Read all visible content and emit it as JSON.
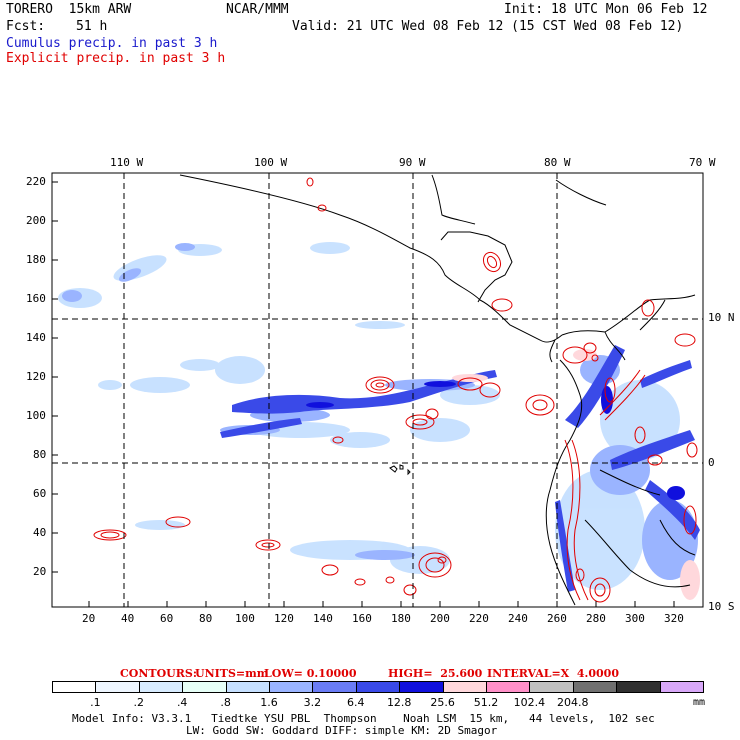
{
  "header": {
    "model": "TORERO  15km ARW",
    "org": "NCAR/MMM",
    "init": "Init: 18 UTC Mon 06 Feb 12",
    "fcst_label": "Fcst:",
    "fcst_value": "51 h",
    "valid": "Valid: 21 UTC Wed 08 Feb 12 (15 CST Wed 08 Feb 12)",
    "field1": "Cumulus precip. in past 3 h",
    "field2": "Explicit precip. in past 3 h"
  },
  "axes": {
    "top_labels": [
      "110 W",
      "100 W",
      "90 W",
      "80 W",
      "70 W"
    ],
    "right_labels": [
      "10 N",
      "0",
      "10 S"
    ],
    "left_ticks": [
      "220",
      "200",
      "180",
      "160",
      "140",
      "120",
      "100",
      "80",
      "60",
      "40",
      "20"
    ],
    "bottom_ticks": [
      "20",
      "40",
      "60",
      "80",
      "100",
      "120",
      "140",
      "160",
      "180",
      "200",
      "220",
      "240",
      "260",
      "280",
      "300",
      "320"
    ]
  },
  "contours": {
    "label": "CONTOURS:",
    "units": "UNITS=mm",
    "low": "LOW= 0.10000",
    "high": "HIGH=  25.600",
    "interval": "INTERVAL=X  4.0000"
  },
  "colorbar": {
    "colors": [
      "#ffffff",
      "#eef6ff",
      "#d8ecff",
      "#e6fff7",
      "#c6e0ff",
      "#9ab4ff",
      "#6a7cf5",
      "#3a4ae8",
      "#1010dd",
      "#ffd8dc",
      "#ff90c8",
      "#c0c0c0",
      "#707070",
      "#303030",
      "#d8a8f8"
    ],
    "labels": [
      ".1",
      ".2",
      ".4",
      ".8",
      "1.6",
      "3.2",
      "6.4",
      "12.8",
      "25.6",
      "51.2",
      "102.4",
      "204.8"
    ],
    "units": "mm"
  },
  "footer": {
    "line1": "Model Info: V3.3.1   Tiedtke YSU PBL  Thompson    Noah LSM  15 km,   44 levels,  102 sec",
    "line2": "LW: Godd SW: Goddard DIFF: simple KM: 2D Smagor"
  }
}
